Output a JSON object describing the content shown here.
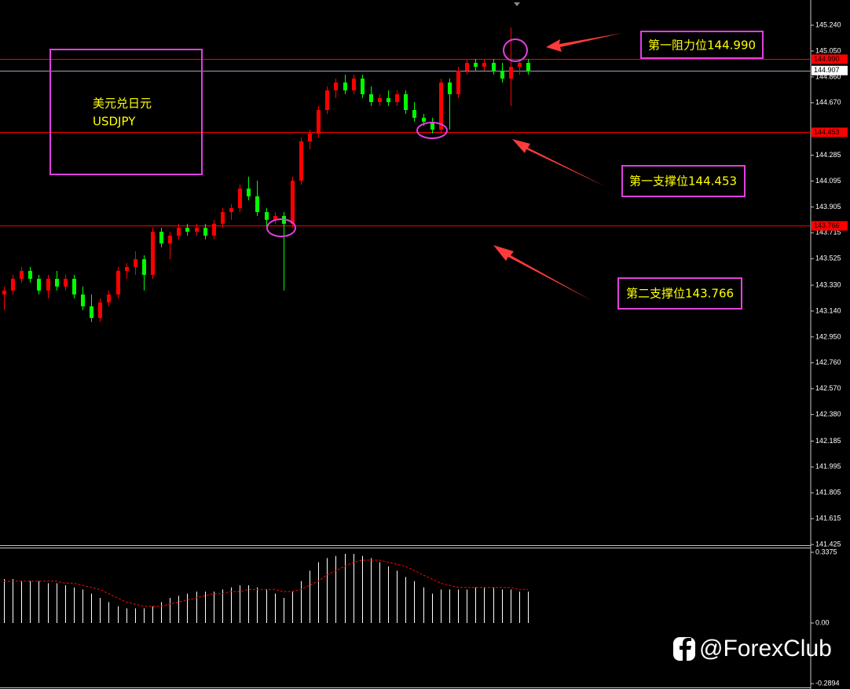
{
  "chart_data": [
    {
      "type": "candlestick",
      "up_color": "#ff0000",
      "down_color": "#00ff00",
      "open": [
        143.262,
        143.291,
        143.377,
        143.435,
        143.377,
        143.291,
        143.377,
        143.32,
        143.377,
        143.262,
        143.175,
        143.089,
        143.204,
        143.262,
        143.435,
        143.464,
        143.521,
        143.406,
        143.723,
        143.637,
        143.694,
        143.752,
        143.723,
        143.752,
        143.694,
        143.781,
        143.867,
        143.896,
        144.04,
        143.983,
        143.867,
        143.81,
        143.839,
        143.781,
        144.098,
        144.387,
        144.444,
        144.617,
        144.761,
        144.819,
        144.761,
        144.848,
        144.733,
        144.675,
        144.704,
        144.675,
        144.733,
        144.617,
        144.56,
        144.531,
        144.473,
        144.819,
        144.733,
        144.906,
        144.963,
        144.934,
        144.963,
        144.906,
        144.848,
        144.934,
        144.963
      ],
      "high": [
        143.32,
        143.406,
        143.464,
        143.464,
        143.406,
        143.406,
        143.435,
        143.406,
        143.406,
        143.32,
        143.262,
        143.233,
        143.291,
        143.464,
        143.493,
        143.579,
        143.55,
        143.752,
        143.752,
        143.723,
        143.781,
        143.781,
        143.781,
        143.781,
        143.81,
        143.896,
        143.925,
        144.069,
        144.127,
        144.098,
        143.896,
        143.867,
        143.867,
        144.127,
        144.415,
        144.473,
        144.646,
        144.79,
        144.848,
        144.877,
        144.877,
        144.877,
        144.79,
        144.733,
        144.761,
        144.761,
        144.761,
        144.675,
        144.588,
        144.56,
        144.848,
        144.848,
        144.934,
        144.992,
        144.992,
        144.992,
        144.992,
        144.963,
        145.223,
        144.992,
        144.992
      ],
      "low": [
        143.147,
        143.262,
        143.348,
        143.348,
        143.262,
        143.233,
        143.291,
        143.291,
        143.233,
        143.147,
        143.06,
        143.06,
        143.175,
        143.233,
        143.377,
        143.406,
        143.291,
        143.377,
        143.608,
        143.521,
        143.666,
        143.694,
        143.694,
        143.666,
        143.666,
        143.752,
        143.81,
        143.867,
        143.954,
        143.839,
        143.752,
        143.781,
        143.291,
        143.752,
        144.069,
        144.329,
        144.415,
        144.588,
        144.704,
        144.733,
        144.733,
        144.704,
        144.646,
        144.646,
        144.646,
        144.646,
        144.588,
        144.531,
        144.502,
        144.444,
        144.444,
        144.473,
        144.704,
        144.877,
        144.906,
        144.906,
        144.877,
        144.819,
        144.646,
        144.877,
        144.877
      ],
      "close": [
        143.291,
        143.377,
        143.435,
        143.377,
        143.291,
        143.377,
        143.32,
        143.377,
        143.262,
        143.175,
        143.089,
        143.204,
        143.262,
        143.435,
        143.464,
        143.521,
        143.406,
        143.723,
        143.637,
        143.694,
        143.752,
        143.723,
        143.752,
        143.694,
        143.781,
        143.867,
        143.896,
        144.04,
        143.983,
        143.867,
        143.81,
        143.839,
        143.781,
        144.098,
        144.387,
        144.444,
        144.617,
        144.761,
        144.819,
        144.761,
        144.848,
        144.733,
        144.675,
        144.704,
        144.675,
        144.733,
        144.617,
        144.56,
        144.531,
        144.473,
        144.819,
        144.733,
        144.906,
        144.963,
        144.934,
        144.963,
        144.906,
        144.848,
        144.934,
        144.963,
        144.906
      ],
      "ylim": [
        141.42,
        145.425
      ],
      "yticks": [
        {
          "value": 145.24,
          "label": "145.240"
        },
        {
          "value": 145.05,
          "label": "145.050"
        },
        {
          "value": 144.86,
          "label": "144.860"
        },
        {
          "value": 144.67,
          "label": "144.670"
        },
        {
          "value": 144.285,
          "label": "144.285"
        },
        {
          "value": 144.095,
          "label": "144.095"
        },
        {
          "value": 143.905,
          "label": "143.905"
        },
        {
          "value": 143.715,
          "label": "143.715"
        },
        {
          "value": 143.525,
          "label": "143.525"
        },
        {
          "value": 143.33,
          "label": "143.330"
        },
        {
          "value": 143.14,
          "label": "143.140"
        },
        {
          "value": 142.95,
          "label": "142.950"
        },
        {
          "value": 142.76,
          "label": "142.760"
        },
        {
          "value": 142.57,
          "label": "142.570"
        },
        {
          "value": 142.38,
          "label": "142.380"
        },
        {
          "value": 142.185,
          "label": "142.185"
        },
        {
          "value": 141.995,
          "label": "141.995"
        },
        {
          "value": 141.805,
          "label": "141.805"
        },
        {
          "value": 141.615,
          "label": "141.615"
        },
        {
          "value": 141.425,
          "label": "141.425"
        }
      ],
      "levels": [
        {
          "value": 144.99,
          "label": "144.990",
          "color": "#ff0000"
        },
        {
          "value": 144.907,
          "label": "144.907",
          "color": "#9aa3b5"
        },
        {
          "value": 144.453,
          "label": "144.453",
          "color": "#ff0000"
        },
        {
          "value": 143.766,
          "label": "143.766",
          "color": "#ff0000"
        }
      ],
      "annotations": [
        "第一阻力位144.990",
        "第一支撑位144.453",
        "第二支撑位143.766",
        "美元兑日元",
        "USDJPY"
      ],
      "watermark": "@ForexClub"
    },
    {
      "type": "histogram",
      "color": "#ffffff",
      "signal_color": "#ff0000",
      "values": [
        0.21,
        0.21,
        0.2,
        0.2,
        0.2,
        0.19,
        0.19,
        0.18,
        0.17,
        0.16,
        0.14,
        0.12,
        0.1,
        0.08,
        0.07,
        0.07,
        0.07,
        0.08,
        0.1,
        0.12,
        0.13,
        0.14,
        0.15,
        0.15,
        0.15,
        0.16,
        0.17,
        0.18,
        0.18,
        0.17,
        0.16,
        0.14,
        0.12,
        0.15,
        0.2,
        0.25,
        0.29,
        0.31,
        0.32,
        0.33,
        0.33,
        0.32,
        0.31,
        0.29,
        0.27,
        0.25,
        0.22,
        0.2,
        0.17,
        0.14,
        0.16,
        0.16,
        0.16,
        0.16,
        0.17,
        0.17,
        0.17,
        0.16,
        0.16,
        0.15,
        0.15
      ],
      "signal": [
        0.2,
        0.2,
        0.2,
        0.2,
        0.2,
        0.2,
        0.2,
        0.19,
        0.19,
        0.18,
        0.17,
        0.16,
        0.14,
        0.12,
        0.1,
        0.09,
        0.08,
        0.08,
        0.08,
        0.09,
        0.1,
        0.11,
        0.12,
        0.13,
        0.14,
        0.14,
        0.15,
        0.15,
        0.16,
        0.16,
        0.16,
        0.16,
        0.15,
        0.15,
        0.16,
        0.18,
        0.2,
        0.23,
        0.25,
        0.27,
        0.29,
        0.3,
        0.3,
        0.3,
        0.29,
        0.28,
        0.27,
        0.25,
        0.23,
        0.21,
        0.19,
        0.18,
        0.17,
        0.17,
        0.17,
        0.17,
        0.17,
        0.17,
        0.17,
        0.16,
        0.16
      ],
      "ylim": [
        -0.315,
        0.36
      ],
      "yticks": [
        0.3375,
        {
          "value": 0,
          "label": "0.00"
        },
        -0.2894
      ]
    }
  ]
}
